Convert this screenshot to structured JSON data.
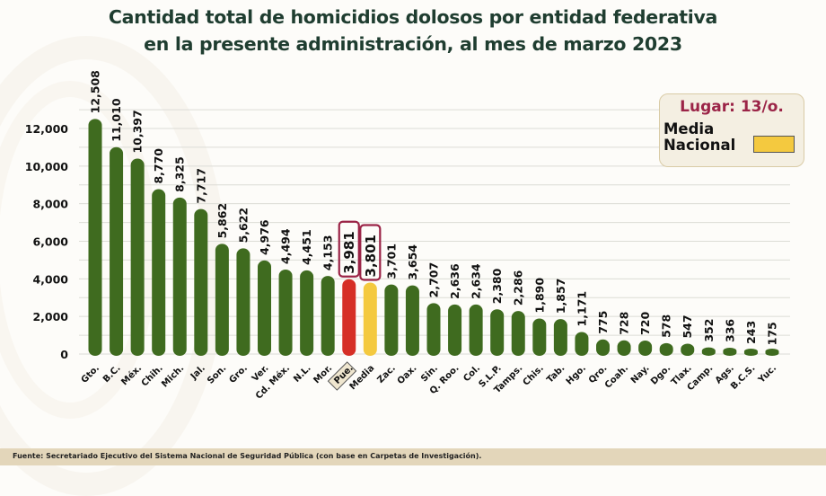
{
  "title_line1": "Cantidad total de homicidios dolosos por entidad federativa",
  "title_line2": "en la presente administración, al mes de marzo 2023",
  "legend": {
    "rank_label": "Lugar: 13/o.",
    "swatch_label": "Media Nacional",
    "swatch_color": "#f4c93f"
  },
  "footer": "Fuente:  Secretariado Ejecutivo del Sistema Nacional de Seguridad Pública (con base en Carpetas de Investigación).",
  "colors": {
    "default_bar": "#3f6b1f",
    "highlight_bar": "#d62f26",
    "average_bar": "#f4c93f",
    "highlight_box": "#9b2447"
  },
  "chart_data": {
    "type": "bar",
    "title": "Cantidad total de homicidios dolosos por entidad federativa en la presente administración, al mes de marzo 2023",
    "xlabel": "",
    "ylabel": "",
    "ylim": [
      0,
      12000
    ],
    "yticks": [
      0,
      2000,
      4000,
      6000,
      8000,
      10000,
      12000
    ],
    "ytick_labels": [
      "0",
      "2,000",
      "4,000",
      "6,000",
      "8,000",
      "10,000",
      "12,000"
    ],
    "grid": true,
    "legend_position": "top-right",
    "categories": [
      "Gto.",
      "B.C.",
      "Méx.",
      "Chih.",
      "Mich.",
      "Jal.",
      "Son.",
      "Gro.",
      "Ver.",
      "Cd. Méx.",
      "N.L.",
      "Mor.",
      "Pue.",
      "Media",
      "Zac.",
      "Oax.",
      "Sin.",
      "Q. Roo.",
      "Col.",
      "S.L.P.",
      "Tamps.",
      "Chis.",
      "Tab.",
      "Hgo.",
      "Qro.",
      "Coah.",
      "Nay.",
      "Dgo.",
      "Tlax.",
      "Camp.",
      "Ags.",
      "B.C.S.",
      "Yuc."
    ],
    "values": [
      12508,
      11010,
      10397,
      8770,
      8325,
      7717,
      5862,
      5622,
      4976,
      4494,
      4451,
      4153,
      3981,
      3801,
      3701,
      3654,
      2707,
      2636,
      2634,
      2380,
      2286,
      1890,
      1857,
      1171,
      775,
      728,
      720,
      578,
      547,
      352,
      336,
      243,
      175
    ],
    "value_labels": [
      "12,508",
      "11,010",
      "10,397",
      "8,770",
      "8,325",
      "7,717",
      "5,862",
      "5,622",
      "4,976",
      "4,494",
      "4,451",
      "4,153",
      "3,981",
      "3,801",
      "3,701",
      "3,654",
      "2,707",
      "2,636",
      "2,634",
      "2,380",
      "2,286",
      "1,890",
      "1,857",
      "1,171",
      "775",
      "728",
      "720",
      "578",
      "547",
      "352",
      "336",
      "243",
      "175"
    ],
    "highlight_category": "Pue.",
    "average_category": "Media"
  }
}
